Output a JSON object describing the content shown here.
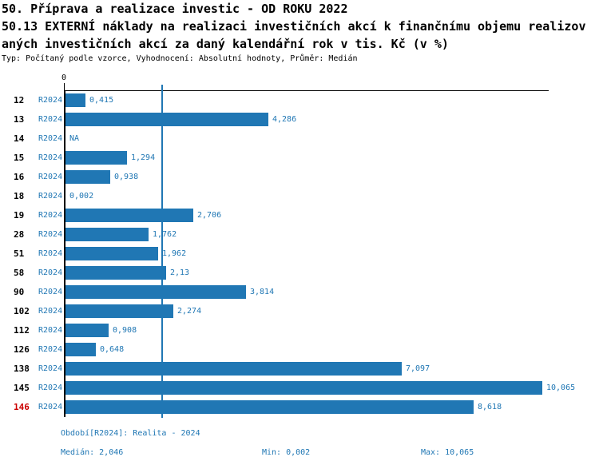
{
  "header": {
    "title_line1": "50. Příprava a realizace investic - OD ROKU 2022",
    "title_line2": "50.13 EXTERNÍ náklady na realizaci investičních akcí k finančnímu objemu realizov",
    "title_line3": "aných investičních akcí za daný kalendářní rok v tis. Kč (v %)",
    "subtitle": "Typ: Počítaný podle vzorce, Vyhodnocení: Absolutní hodnoty, Průměr: Medián"
  },
  "chart_data": {
    "type": "bar",
    "orientation": "horizontal",
    "zero_tick_label": "0",
    "xlim": [
      0,
      10.2
    ],
    "grid": false,
    "bar_color": "#2077b4",
    "label_color": "#2077b4",
    "highlight_row_color": "#cc0000",
    "median_value": 2.046,
    "na_text": "NA",
    "rows": [
      {
        "id": "12",
        "period": "R2024",
        "value": 0.415,
        "label": "0,415",
        "highlight": false
      },
      {
        "id": "13",
        "period": "R2024",
        "value": 4.286,
        "label": "4,286",
        "highlight": false
      },
      {
        "id": "14",
        "period": "R2024",
        "value": null,
        "label": "NA",
        "highlight": false
      },
      {
        "id": "15",
        "period": "R2024",
        "value": 1.294,
        "label": "1,294",
        "highlight": false
      },
      {
        "id": "16",
        "period": "R2024",
        "value": 0.938,
        "label": "0,938",
        "highlight": false
      },
      {
        "id": "18",
        "period": "R2024",
        "value": 0.002,
        "label": "0,002",
        "highlight": false
      },
      {
        "id": "19",
        "period": "R2024",
        "value": 2.706,
        "label": "2,706",
        "highlight": false
      },
      {
        "id": "28",
        "period": "R2024",
        "value": 1.762,
        "label": "1,762",
        "highlight": false
      },
      {
        "id": "51",
        "period": "R2024",
        "value": 1.962,
        "label": "1,962",
        "highlight": false
      },
      {
        "id": "58",
        "period": "R2024",
        "value": 2.13,
        "label": "2,13",
        "highlight": false
      },
      {
        "id": "90",
        "period": "R2024",
        "value": 3.814,
        "label": "3,814",
        "highlight": false
      },
      {
        "id": "102",
        "period": "R2024",
        "value": 2.274,
        "label": "2,274",
        "highlight": false
      },
      {
        "id": "112",
        "period": "R2024",
        "value": 0.908,
        "label": "0,908",
        "highlight": false
      },
      {
        "id": "126",
        "period": "R2024",
        "value": 0.648,
        "label": "0,648",
        "highlight": false
      },
      {
        "id": "138",
        "period": "R2024",
        "value": 7.097,
        "label": "7,097",
        "highlight": false
      },
      {
        "id": "145",
        "period": "R2024",
        "value": 10.065,
        "label": "10,065",
        "highlight": false
      },
      {
        "id": "146",
        "period": "R2024",
        "value": 8.618,
        "label": "8,618",
        "highlight": true
      }
    ]
  },
  "footer": {
    "period": "Období[R2024]: Realita - 2024",
    "median": "Medián: 2,046",
    "min": "Min: 0,002",
    "max": "Max: 10,065"
  }
}
